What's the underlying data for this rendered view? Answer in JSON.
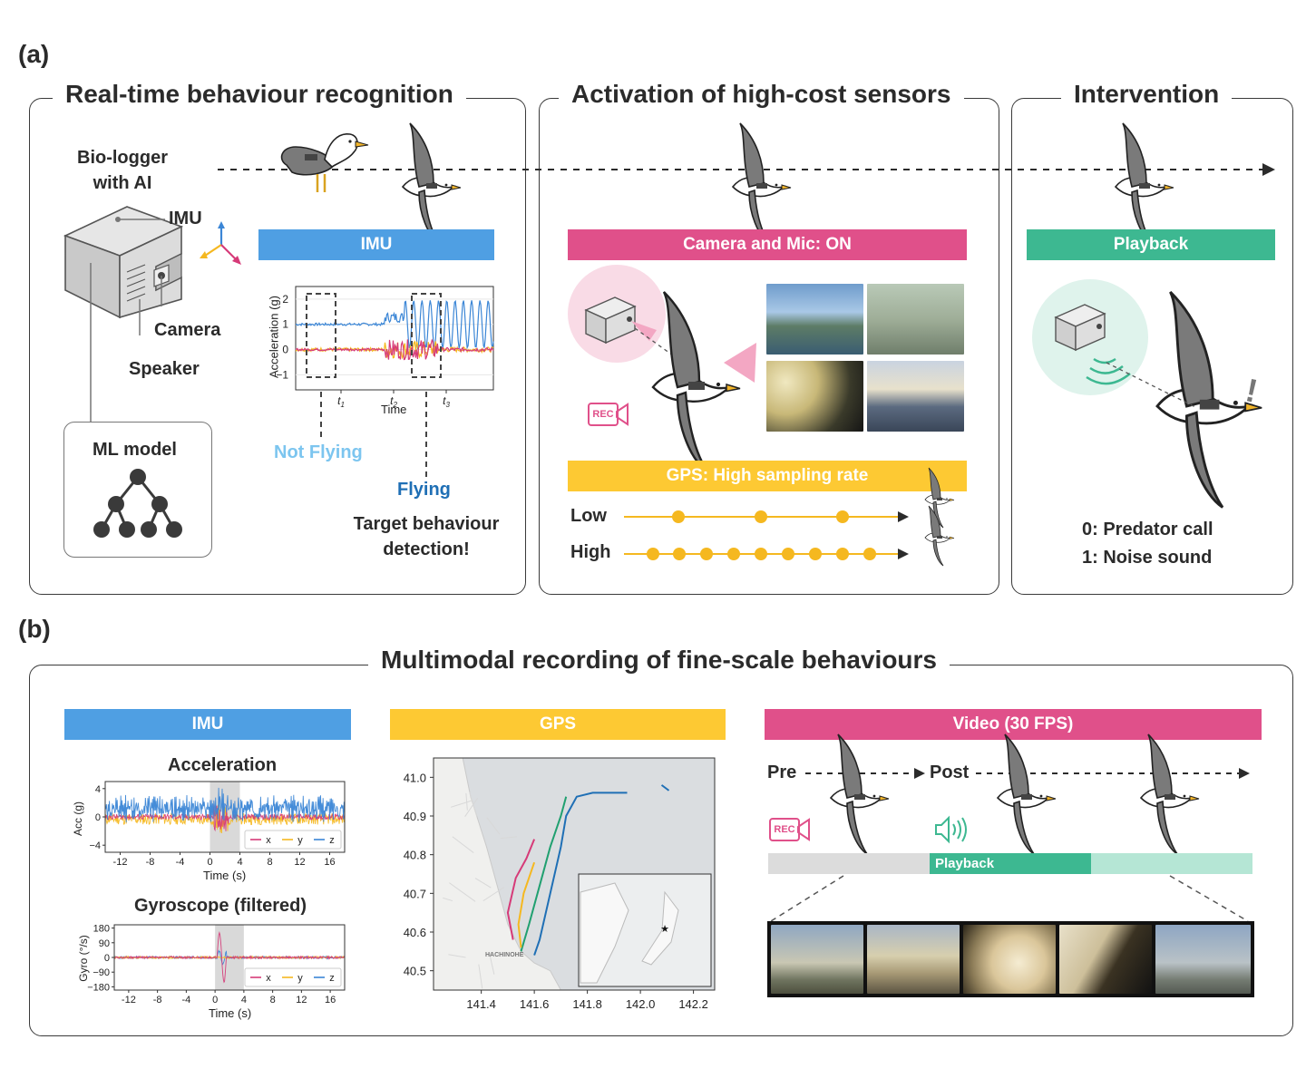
{
  "panel_a": {
    "label": "(a)",
    "section1": {
      "title": "Real-time behaviour recognition",
      "biologger_label": "Bio-logger\nwith AI",
      "imu_label": "IMU",
      "camera_label": "Camera",
      "speaker_label": "Speaker",
      "ml_model_label": "ML model",
      "imu_bar": "IMU",
      "not_flying": "Not Flying",
      "flying": "Flying",
      "target_detection": "Target behaviour\ndetection!"
    },
    "section2": {
      "title": "Activation of high-cost sensors",
      "camera_bar": "Camera and Mic: ON",
      "rec_label": "REC",
      "gps_bar": "GPS: High sampling rate",
      "low_label": "Low",
      "high_label": "High"
    },
    "section3": {
      "title": "Intervention",
      "playback_bar": "Playback",
      "exclamation": "!",
      "option0": "0: Predator call",
      "option1": "1: Noise sound"
    }
  },
  "panel_b": {
    "label": "(b)",
    "title": "Multimodal recording of fine-scale behaviours",
    "imu_bar": "IMU",
    "gps_bar": "GPS",
    "video_bar": "Video (30 FPS)",
    "pre_label": "Pre",
    "post_label": "Post",
    "rec_label": "REC",
    "playback_timeline_label": "Playback",
    "map_labels": {
      "city": "HACHINOHE"
    }
  },
  "chart_data": [
    {
      "id": "imu-acceleration-a",
      "type": "line",
      "xlabel": "Time",
      "ylabel": "Acceleration (g)",
      "ylim": [
        -1.6,
        2.5
      ],
      "yticks": [
        "2",
        "1",
        "0",
        "−1"
      ],
      "xticks": [
        "t1",
        "t2",
        "t3"
      ],
      "series": [
        {
          "color": "#3b86d6",
          "values_desc": [
            1,
            1,
            1,
            1,
            1,
            1,
            1.2,
            1.4,
            1.9,
            0.1
          ]
        },
        {
          "color": "#f5b820",
          "values_desc": [
            0,
            0,
            0,
            0,
            0,
            0.2,
            -0.3,
            0.3,
            0,
            0
          ]
        },
        {
          "color": "#d63a78",
          "values_desc": [
            0,
            0,
            0,
            0,
            0,
            -0.2,
            0.3,
            -0.3,
            0,
            0
          ]
        }
      ]
    },
    {
      "id": "acceleration-b",
      "type": "line",
      "title": "Acceleration",
      "xlabel": "Time (s)",
      "ylabel": "Acc (g)",
      "ylim": [
        -5,
        5
      ],
      "yticks": [
        "4",
        "0",
        "−4"
      ],
      "xticks": [
        "-12",
        "-8",
        "-4",
        "0",
        "4",
        "8",
        "12",
        "16"
      ],
      "xlim": [
        -14,
        18
      ],
      "shaded_interval": [
        0,
        4
      ],
      "legend": [
        "x",
        "y",
        "z"
      ],
      "legend_position": "lower-right"
    },
    {
      "id": "gyroscope-b",
      "type": "line",
      "title": "Gyroscope (filtered)",
      "xlabel": "Time (s)",
      "ylabel": "Gyro (°/s)",
      "ylim": [
        -200,
        200
      ],
      "yticks": [
        "180",
        "90",
        "0",
        "−90",
        "−180"
      ],
      "xticks": [
        "-12",
        "-8",
        "-4",
        "0",
        "4",
        "8",
        "12",
        "16"
      ],
      "xlim": [
        -14,
        18
      ],
      "shaded_interval": [
        0,
        4
      ],
      "legend": [
        "x",
        "y",
        "z"
      ],
      "legend_position": "lower-right"
    },
    {
      "id": "gps-map-b",
      "type": "scatter",
      "xticks": [
        "141.4",
        "141.6",
        "141.8",
        "142.0",
        "142.2"
      ],
      "yticks": [
        "41.0",
        "40.9",
        "40.8",
        "40.7",
        "40.6",
        "40.5"
      ],
      "xlim": [
        141.22,
        142.28
      ],
      "ylim": [
        40.45,
        41.05
      ]
    }
  ],
  "colors": {
    "blue": "#4f9fe3",
    "pink": "#e0508a",
    "yellow": "#fdc933",
    "green": "#3db891",
    "light_blue_text": "#7cc5ef",
    "dark_blue_text": "#1f6fb5"
  }
}
